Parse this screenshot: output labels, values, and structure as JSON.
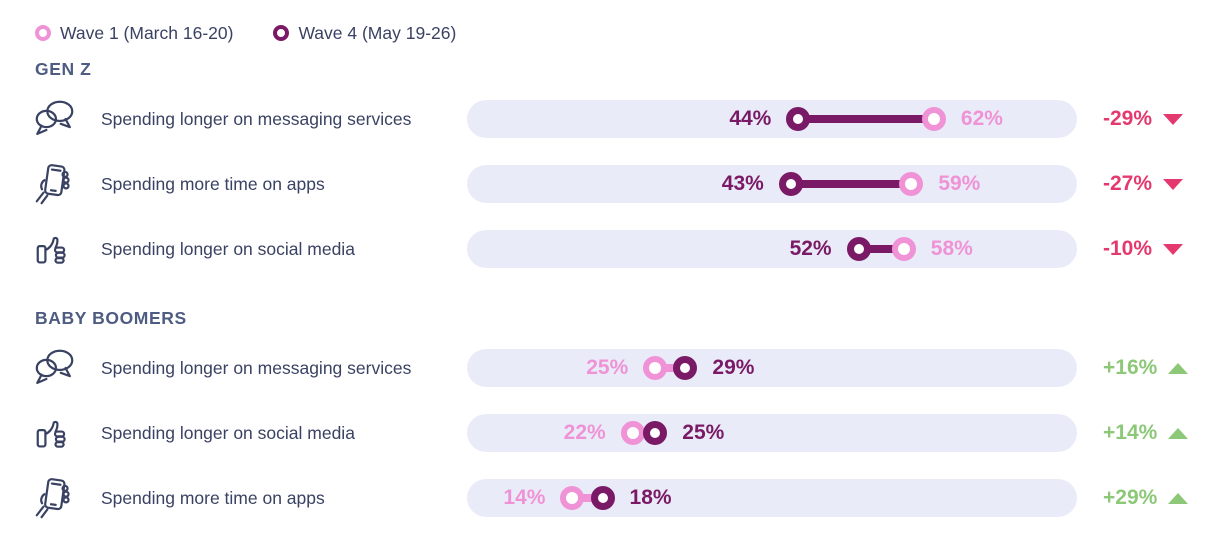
{
  "colors": {
    "wave1_pink": "#ef93d6",
    "wave4_purple": "#7a1a66",
    "bar_background": "#e9ecf8",
    "decrease_red": "#e4396f",
    "increase_green": "#8cc878",
    "text_navy": "#3a4263",
    "heading_slate": "#4e5c82"
  },
  "legend": {
    "items": [
      {
        "label": "Wave 1 (March 16-20)",
        "series": "wave1"
      },
      {
        "label": "Wave 4 (May 19-26)",
        "series": "wave4"
      }
    ]
  },
  "chart_data": {
    "type": "dumbbell",
    "unit": "%",
    "axis_max": 81,
    "series": [
      "Wave 1 (March 16-20)",
      "Wave 4 (May 19-26)"
    ],
    "sections": [
      {
        "title": "GEN Z",
        "rows": [
          {
            "icon": "chat-bubbles",
            "label": "Spending longer on messaging services",
            "wave1": 62,
            "wave4": 44,
            "change": "-29%",
            "direction": "down"
          },
          {
            "icon": "phone-in-hand",
            "label": "Spending more time on apps",
            "wave1": 59,
            "wave4": 43,
            "change": "-27%",
            "direction": "down"
          },
          {
            "icon": "thumbs-up",
            "label": "Spending longer on social media",
            "wave1": 58,
            "wave4": 52,
            "change": "-10%",
            "direction": "down"
          }
        ]
      },
      {
        "title": "BABY BOOMERS",
        "rows": [
          {
            "icon": "chat-bubbles",
            "label": "Spending longer on messaging services",
            "wave1": 25,
            "wave4": 29,
            "change": "+16%",
            "direction": "up"
          },
          {
            "icon": "thumbs-up",
            "label": "Spending longer on social media",
            "wave1": 22,
            "wave4": 25,
            "change": "+14%",
            "direction": "up"
          },
          {
            "icon": "phone-in-hand",
            "label": "Spending more time on apps",
            "wave1": 14,
            "wave4": 18,
            "change": "+29%",
            "direction": "up"
          }
        ]
      }
    ]
  }
}
